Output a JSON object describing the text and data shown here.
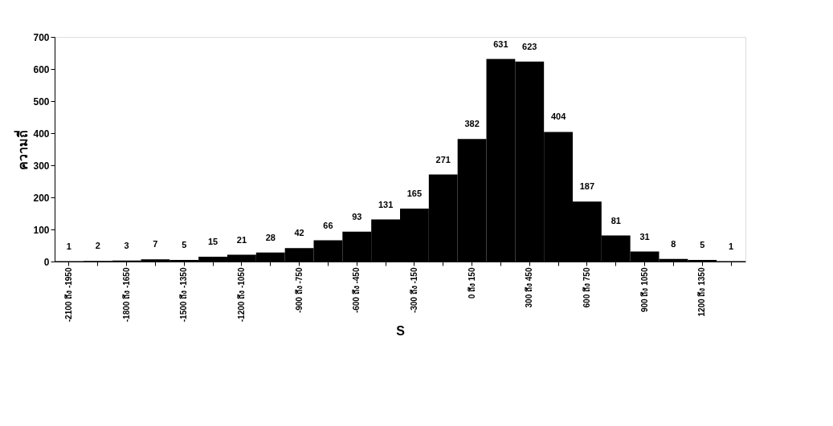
{
  "chart_data": {
    "type": "bar",
    "xlabel": "S",
    "ylabel": "ความถี่",
    "categories": [
      "-2100 ถึง -1950",
      null,
      "-1800 ถึง -1650",
      null,
      "-1500 ถึง -1350",
      null,
      "-1200 ถึง -1050",
      null,
      "-900 ถึง -750",
      null,
      "-600 ถึง -450",
      null,
      "-300 ถึง -150",
      null,
      "0 ถึง 150",
      null,
      "300 ถึง 450",
      null,
      "600 ถึง 750",
      null,
      "900 ถึง 1050",
      null,
      "1200 ถึง 1350",
      null
    ],
    "values": [
      1,
      2,
      3,
      7,
      5,
      15,
      21,
      28,
      42,
      66,
      93,
      131,
      165,
      271,
      382,
      631,
      623,
      404,
      187,
      81,
      31,
      8,
      5,
      1
    ],
    "color": "#000000",
    "ylim": [
      0,
      700
    ],
    "yticks": [
      0,
      100,
      200,
      300,
      400,
      500,
      600,
      700
    ],
    "grid": false,
    "data_labels": true
  }
}
